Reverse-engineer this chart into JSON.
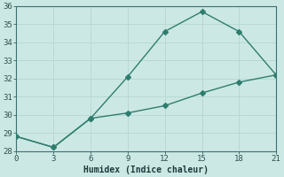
{
  "xlabel": "Humidex (Indice chaleur)",
  "line1_x": [
    0,
    3,
    6,
    9,
    12,
    15,
    18,
    21
  ],
  "line1_y": [
    28.8,
    28.2,
    29.8,
    32.1,
    34.6,
    35.7,
    34.6,
    32.2
  ],
  "line2_x": [
    0,
    3,
    6,
    9,
    12,
    15,
    18,
    21
  ],
  "line2_y": [
    28.8,
    28.2,
    29.8,
    30.1,
    30.5,
    31.2,
    31.8,
    32.2
  ],
  "line_color": "#2e7d6e",
  "bg_color": "#cce8e4",
  "grid_color": "#b8d8d4",
  "xlim": [
    0,
    21
  ],
  "ylim": [
    28,
    36
  ],
  "xticks": [
    0,
    3,
    6,
    9,
    12,
    15,
    18,
    21
  ],
  "yticks": [
    28,
    29,
    30,
    31,
    32,
    33,
    34,
    35,
    36
  ],
  "marker": "D",
  "marker_size": 3,
  "linewidth": 1.0
}
